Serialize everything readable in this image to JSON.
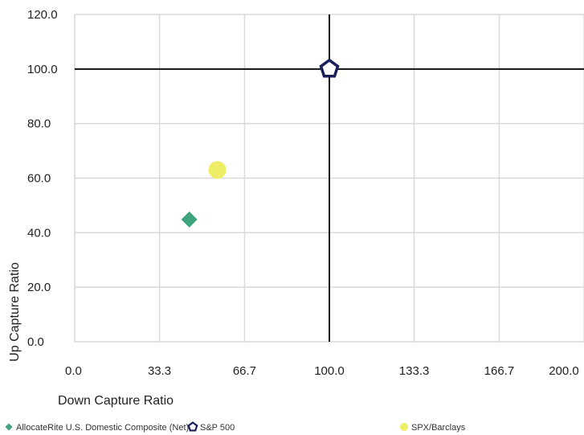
{
  "chart_data": {
    "type": "scatter",
    "title": "",
    "xlabel": "Down Capture Ratio",
    "ylabel": "Up Capture Ratio",
    "xlim": [
      0,
      200
    ],
    "ylim": [
      0,
      120
    ],
    "x_ticks": [
      "0.0",
      "33.3",
      "66.7",
      "100.0",
      "133.3",
      "166.7",
      "200.0"
    ],
    "x_tick_values": [
      0,
      33.3,
      66.7,
      100,
      133.3,
      166.7,
      200
    ],
    "y_ticks": [
      "0.0",
      "20.0",
      "40.0",
      "60.0",
      "80.0",
      "100.0",
      "120.0"
    ],
    "y_tick_values": [
      0,
      20,
      40,
      60,
      80,
      100,
      120
    ],
    "grid": true,
    "reference_lines": {
      "x": 100,
      "y": 100
    },
    "legend_position": "bottom",
    "series": [
      {
        "name": "AllocateRite U.S. Domestic Composite (Net)",
        "marker": "diamond",
        "color": "#3fa37e",
        "x": 45,
        "y": 44.8
      },
      {
        "name": "S&P 500",
        "marker": "pentagon",
        "color": "#1a1f5a",
        "x": 100,
        "y": 100
      },
      {
        "name": "SPX/Barclays",
        "marker": "circle",
        "color": "#eeee66",
        "x": 56,
        "y": 63
      }
    ]
  }
}
